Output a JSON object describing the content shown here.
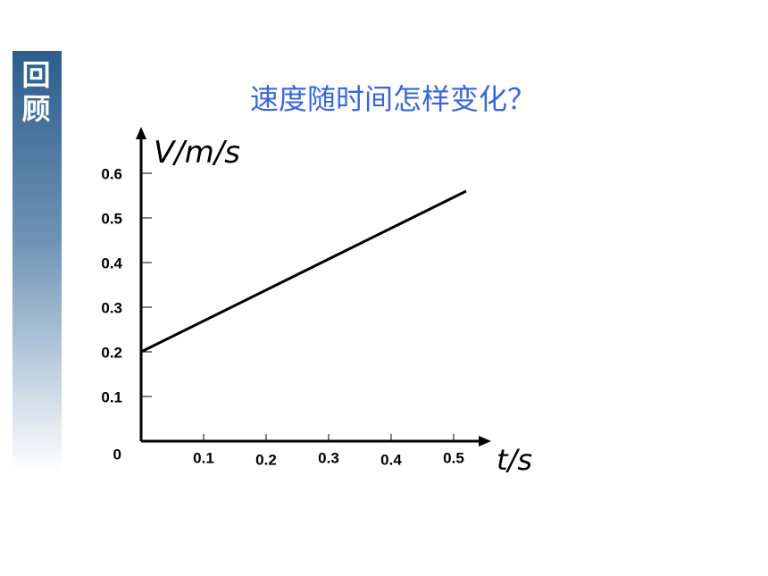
{
  "sidebar": {
    "label": "回顾"
  },
  "chart_data": {
    "type": "line",
    "title": "速度随时间怎样变化？",
    "x_label": "t/s",
    "y_label": "V/m/s",
    "x": [
      0,
      0.52
    ],
    "values": [
      0.2,
      0.56
    ],
    "color": "#000000",
    "xlim": [
      0,
      0.56
    ],
    "ylim": [
      0,
      0.7
    ],
    "xticks": [
      0.1,
      0.2,
      0.3,
      0.4,
      0.5
    ],
    "yticks": [
      0,
      0.1,
      0.2,
      0.3,
      0.4,
      0.5,
      0.6
    ]
  }
}
